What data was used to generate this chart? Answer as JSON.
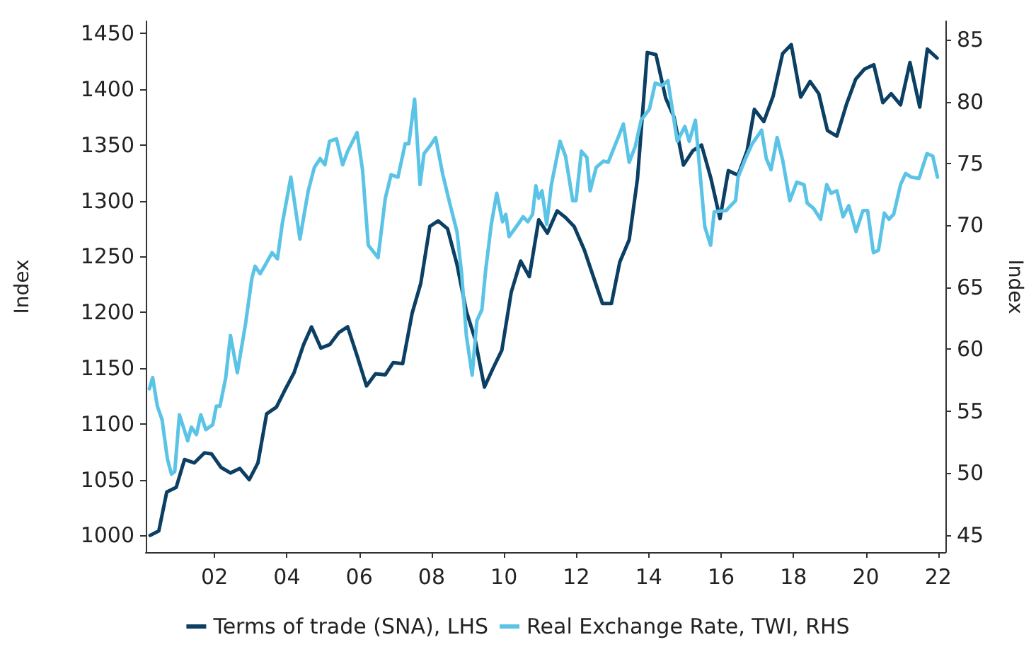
{
  "chart_data": {
    "type": "line",
    "ylabel": "Index",
    "y2label": "Index",
    "xlim": [
      2000.1,
      2022.2
    ],
    "xticks": [
      {
        "value": 2002,
        "label": "02"
      },
      {
        "value": 2004,
        "label": "04"
      },
      {
        "value": 2006,
        "label": "06"
      },
      {
        "value": 2008,
        "label": "08"
      },
      {
        "value": 2010,
        "label": "10"
      },
      {
        "value": 2012,
        "label": "12"
      },
      {
        "value": 2014,
        "label": "14"
      },
      {
        "value": 2016,
        "label": "16"
      },
      {
        "value": 2018,
        "label": "18"
      },
      {
        "value": 2020,
        "label": "20"
      },
      {
        "value": 2022,
        "label": "22"
      }
    ],
    "ylim": [
      985,
      1461
    ],
    "yticks": [
      1000,
      1050,
      1100,
      1150,
      1200,
      1250,
      1300,
      1350,
      1400,
      1450
    ],
    "y2lim": [
      43.6,
      86.5
    ],
    "y2ticks": [
      45,
      50,
      55,
      60,
      65,
      70,
      75,
      80,
      85
    ],
    "grid": false,
    "legend": "bottom",
    "marker": "none",
    "line_style": "solid",
    "series": [
      {
        "name": "Terms of trade (SNA), LHS",
        "color": "#0b3f63",
        "x": [
          2000.22,
          2000.46,
          2000.68,
          2000.94,
          2001.17,
          2001.44,
          2001.72,
          2001.92,
          2002.18,
          2002.44,
          2002.7,
          2002.96,
          2003.2,
          2003.44,
          2003.71,
          2003.94,
          2004.2,
          2004.46,
          2004.68,
          2004.94,
          2005.18,
          2005.44,
          2005.68,
          2005.96,
          2006.2,
          2006.45,
          2006.72,
          2006.94,
          2007.2,
          2007.46,
          2007.7,
          2007.95,
          2008.18,
          2008.44,
          2008.7,
          2008.96,
          2009.2,
          2009.46,
          2009.7,
          2009.94,
          2010.2,
          2010.46,
          2010.7,
          2010.96,
          2011.2,
          2011.47,
          2011.7,
          2011.94,
          2012.22,
          2012.48,
          2012.72,
          2012.97,
          2013.2,
          2013.46,
          2013.69,
          2013.96,
          2014.2,
          2014.47,
          2014.7,
          2014.96,
          2015.22,
          2015.46,
          2015.72,
          2015.97,
          2016.2,
          2016.47,
          2016.72,
          2016.92,
          2017.18,
          2017.44,
          2017.7,
          2017.94,
          2018.2,
          2018.46,
          2018.7,
          2018.94,
          2019.2,
          2019.46,
          2019.72,
          2019.96,
          2020.22,
          2020.47,
          2020.7,
          2020.96,
          2021.22,
          2021.49,
          2021.7,
          2021.97
        ],
        "values": [
          1000,
          1004,
          1039,
          1043,
          1068,
          1065,
          1074,
          1073,
          1061,
          1056,
          1060,
          1050,
          1065,
          1109,
          1115,
          1130,
          1146,
          1171,
          1187,
          1168,
          1171,
          1182,
          1187,
          1159,
          1134,
          1145,
          1144,
          1155,
          1154,
          1199,
          1226,
          1277,
          1282,
          1275,
          1243,
          1201,
          1176,
          1133,
          1150,
          1166,
          1218,
          1246,
          1232,
          1283,
          1271,
          1291,
          1285,
          1277,
          1256,
          1231,
          1208,
          1208,
          1245,
          1265,
          1320,
          1433,
          1431,
          1392,
          1375,
          1332,
          1345,
          1350,
          1320,
          1284,
          1327,
          1323,
          1345,
          1382,
          1371,
          1394,
          1432,
          1440,
          1393,
          1407,
          1396,
          1363,
          1358,
          1386,
          1409,
          1418,
          1422,
          1388,
          1396,
          1386,
          1424,
          1384,
          1436,
          1428
        ]
      },
      {
        "name": "Real Exchange Rate, TWI, RHS",
        "color": "#5bc4e6",
        "axis": "y2",
        "x": [
          2000.2,
          2000.29,
          2000.42,
          2000.55,
          2000.7,
          2000.81,
          2000.9,
          2001.03,
          2001.26,
          2001.36,
          2001.5,
          2001.62,
          2001.76,
          2001.95,
          2002.05,
          2002.15,
          2002.31,
          2002.44,
          2002.63,
          2002.86,
          2003.03,
          2003.12,
          2003.26,
          2003.42,
          2003.59,
          2003.74,
          2003.87,
          2004.11,
          2004.36,
          2004.59,
          2004.76,
          2004.92,
          2005.05,
          2005.18,
          2005.37,
          2005.54,
          2005.68,
          2005.94,
          2006.09,
          2006.25,
          2006.52,
          2006.72,
          2006.88,
          2007.07,
          2007.27,
          2007.37,
          2007.53,
          2007.68,
          2007.79,
          2007.95,
          2008.11,
          2008.31,
          2008.5,
          2008.7,
          2008.83,
          2008.96,
          2009.12,
          2009.25,
          2009.39,
          2009.49,
          2009.65,
          2009.8,
          2009.96,
          2010.05,
          2010.14,
          2010.34,
          2010.53,
          2010.66,
          2010.79,
          2010.88,
          2010.96,
          2011.05,
          2011.18,
          2011.31,
          2011.55,
          2011.7,
          2011.9,
          2011.99,
          2012.14,
          2012.29,
          2012.38,
          2012.55,
          2012.75,
          2012.88,
          2013.14,
          2013.3,
          2013.46,
          2013.63,
          2013.79,
          2014.02,
          2014.18,
          2014.37,
          2014.53,
          2014.79,
          2015.0,
          2015.12,
          2015.29,
          2015.55,
          2015.71,
          2015.81,
          2016.14,
          2016.2,
          2016.4,
          2016.47,
          2016.66,
          2016.86,
          2017.12,
          2017.25,
          2017.38,
          2017.55,
          2017.7,
          2017.9,
          2018.09,
          2018.29,
          2018.38,
          2018.55,
          2018.75,
          2018.92,
          2019.04,
          2019.2,
          2019.37,
          2019.53,
          2019.73,
          2019.92,
          2020.05,
          2020.21,
          2020.35,
          2020.51,
          2020.64,
          2020.77,
          2020.96,
          2021.1,
          2021.26,
          2021.47,
          2021.69,
          2021.85,
          2021.98
        ],
        "values": [
          56.8,
          57.7,
          55.4,
          54.3,
          51.1,
          49.9,
          50.1,
          54.7,
          52.6,
          53.7,
          53.1,
          54.7,
          53.5,
          53.9,
          55.4,
          55.4,
          57.7,
          61.1,
          58.1,
          62.1,
          65.7,
          66.7,
          66.1,
          66.9,
          67.8,
          67.3,
          70.1,
          73.9,
          68.9,
          72.8,
          74.7,
          75.4,
          74.9,
          76.8,
          77.0,
          74.9,
          76.0,
          77.5,
          74.5,
          68.4,
          67.4,
          72.2,
          74.1,
          73.9,
          76.6,
          76.6,
          80.2,
          73.3,
          75.8,
          76.4,
          77.1,
          74.1,
          71.8,
          69.5,
          66.1,
          61.1,
          57.9,
          62.3,
          63.2,
          66.3,
          70.1,
          72.6,
          70.3,
          70.9,
          69.1,
          69.9,
          70.7,
          70.3,
          70.9,
          73.2,
          72.2,
          72.8,
          70.1,
          73.3,
          76.8,
          75.6,
          72.0,
          72.0,
          76.0,
          75.5,
          72.8,
          74.7,
          75.2,
          75.1,
          77.0,
          78.2,
          75.1,
          76.4,
          78.5,
          79.4,
          81.5,
          81.3,
          81.7,
          76.8,
          78.0,
          76.8,
          78.5,
          69.9,
          68.4,
          71.1,
          71.2,
          71.4,
          72.0,
          73.9,
          75.3,
          76.6,
          77.7,
          75.4,
          74.5,
          77.1,
          75.3,
          72.0,
          73.5,
          73.3,
          71.8,
          71.4,
          70.5,
          73.3,
          72.6,
          72.8,
          70.7,
          71.6,
          69.5,
          71.2,
          71.2,
          67.8,
          68.0,
          71.0,
          70.5,
          70.9,
          73.3,
          74.2,
          73.9,
          73.8,
          75.8,
          75.6,
          73.9
        ]
      }
    ]
  }
}
